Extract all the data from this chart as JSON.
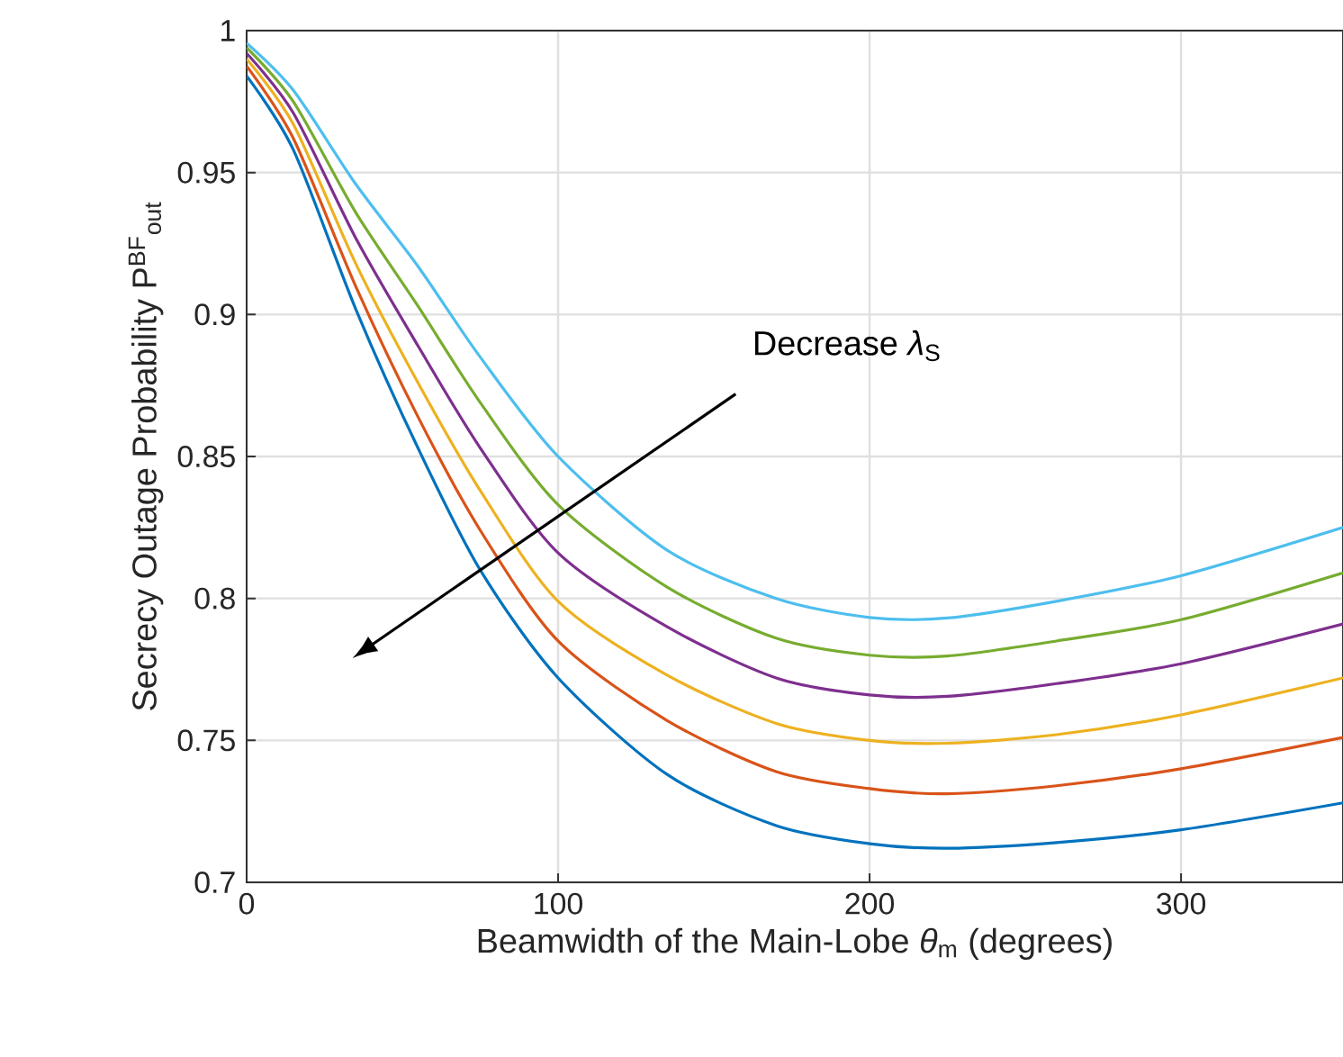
{
  "chart_data": {
    "type": "line",
    "xlabel": "Beamwidth of the Main-Lobe *θ*$_{m}$ (degrees)",
    "ylabel": "Secrecy Outage Probability P$^{BF}$$_{out}$",
    "annotations": [
      "Decrease *λ*$_{S}$"
    ],
    "x": [
      0,
      15,
      35,
      55,
      75,
      100,
      135,
      170,
      200,
      225,
      260,
      300,
      352
    ],
    "series": [
      {
        "color": "#0072bd",
        "values": [
          0.984,
          0.958,
          0.902,
          0.853,
          0.81,
          0.772,
          0.738,
          0.72,
          0.7136,
          0.712,
          0.714,
          0.7185,
          0.728
        ]
      },
      {
        "color": "#d95319",
        "values": [
          0.9875,
          0.962,
          0.91,
          0.864,
          0.824,
          0.785,
          0.757,
          0.739,
          0.733,
          0.7312,
          0.734,
          0.74,
          0.751
        ]
      },
      {
        "color": "#edb120",
        "values": [
          0.99,
          0.967,
          0.918,
          0.876,
          0.838,
          0.799,
          0.773,
          0.756,
          0.75,
          0.749,
          0.752,
          0.759,
          0.772
        ]
      },
      {
        "color": "#7e2f8e",
        "values": [
          0.992,
          0.971,
          0.927,
          0.889,
          0.853,
          0.816,
          0.79,
          0.772,
          0.766,
          0.7655,
          0.77,
          0.777,
          0.791
        ]
      },
      {
        "color": "#77ac30",
        "values": [
          0.994,
          0.975,
          0.936,
          0.903,
          0.869,
          0.833,
          0.804,
          0.786,
          0.78,
          0.7797,
          0.785,
          0.7925,
          0.809
        ]
      },
      {
        "color": "#4dbeee",
        "values": [
          0.9956,
          0.979,
          0.946,
          0.917,
          0.885,
          0.85,
          0.817,
          0.8,
          0.7933,
          0.7931,
          0.799,
          0.808,
          0.825
        ]
      }
    ],
    "xlim": [
      0,
      352
    ],
    "ylim": [
      0.7,
      1
    ],
    "xticks": [
      0,
      100,
      200,
      300
    ],
    "yticks": [
      0.7,
      0.75,
      0.8,
      0.85,
      0.9,
      0.95,
      1
    ],
    "grid": true,
    "marker": "none"
  }
}
